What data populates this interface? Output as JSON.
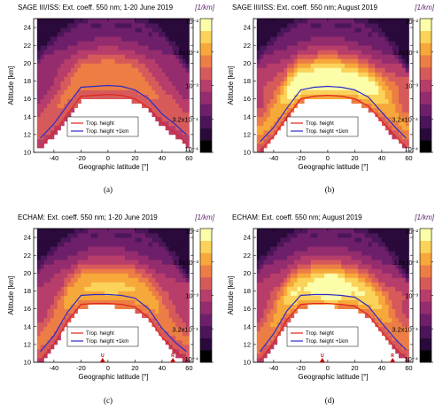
{
  "figure": {
    "unit_label": "[1/km]",
    "colorbar_ticks": [
      "10⁻²",
      "3.2x10⁻³",
      "10⁻³",
      "3.2x10⁻⁴",
      "10⁻⁴"
    ],
    "colors": {
      "colormap": [
        "#000000",
        "#2a0a3a",
        "#4a1659",
        "#6e1f6a",
        "#942c6e",
        "#b73d6a",
        "#d75a5b",
        "#ec7e45",
        "#f7a83a",
        "#fbd35a",
        "#fcfda8"
      ],
      "tropopause": "#e0241b",
      "tropopause_plus_1km": "#2d2bc8",
      "volcano_marker": "#c00000"
    }
  },
  "chart_data": [
    {
      "type": "heatmap",
      "panel": "a",
      "title": "SAGE III/ISS: Ext. coeff. 550 nm; 1-20 June 2019",
      "xlabel": "Geographic latitude [°]",
      "ylabel": "Altitude [km]",
      "xlim": [
        -55,
        63
      ],
      "ylim": [
        10,
        25
      ],
      "x_ticks": [
        "-40",
        "-20",
        "0",
        "20",
        "40",
        "60"
      ],
      "y_ticks": [
        "10",
        "12",
        "14",
        "16",
        "18",
        "20",
        "22",
        "24"
      ],
      "colorbar": {
        "scale": "log",
        "range": [
          0.0001,
          0.01
        ]
      },
      "legend": [
        "Trop. height",
        "Trop. height +1km"
      ],
      "caption": "(a)",
      "series": [
        {
          "name": "Trop. height",
          "x": [
            -50,
            -40,
            -30,
            -20,
            -10,
            0,
            10,
            20,
            30,
            40,
            50,
            58
          ],
          "y": [
            10.6,
            12.2,
            14.3,
            16.3,
            16.4,
            16.5,
            16.4,
            16.0,
            15.0,
            13.3,
            12.1,
            11.0
          ]
        },
        {
          "name": "Trop. height +1km",
          "x": [
            -50,
            -40,
            -30,
            -20,
            -10,
            0,
            10,
            20,
            30,
            40,
            50,
            58
          ],
          "y": [
            11.6,
            13.2,
            15.3,
            17.3,
            17.4,
            17.5,
            17.4,
            17.0,
            16.0,
            14.3,
            13.1,
            12.0
          ]
        }
      ]
    },
    {
      "type": "heatmap",
      "panel": "b",
      "title": "SAGE III/ISS: Ext. coeff. 550 nm; August 2019",
      "xlabel": "Geographic latitude [°]",
      "ylabel": "Altitude [km]",
      "xlim": [
        -55,
        63
      ],
      "ylim": [
        10,
        25
      ],
      "x_ticks": [
        "-40",
        "-20",
        "0",
        "20",
        "40",
        "60"
      ],
      "y_ticks": [
        "10",
        "12",
        "14",
        "16",
        "18",
        "20",
        "22",
        "24"
      ],
      "colorbar": {
        "scale": "log",
        "range": [
          0.0001,
          0.01
        ]
      },
      "legend": [
        "Trop. height",
        "Trop. height +1km"
      ],
      "caption": "(b)",
      "series": [
        {
          "name": "Trop. height",
          "x": [
            -50,
            -40,
            -30,
            -20,
            -10,
            0,
            10,
            20,
            30,
            40,
            50,
            58
          ],
          "y": [
            10.2,
            11.8,
            14.0,
            16.0,
            16.3,
            16.4,
            16.3,
            16.0,
            15.2,
            13.5,
            11.8,
            10.6
          ]
        },
        {
          "name": "Trop. height +1km",
          "x": [
            -50,
            -40,
            -30,
            -20,
            -10,
            0,
            10,
            20,
            30,
            40,
            50,
            58
          ],
          "y": [
            11.2,
            12.8,
            15.0,
            17.0,
            17.3,
            17.4,
            17.3,
            17.0,
            16.2,
            14.5,
            12.8,
            11.6
          ]
        }
      ]
    },
    {
      "type": "heatmap",
      "panel": "c",
      "title": "ECHAM: Ext. coeff. 550 nm; 1-20 June 2019",
      "xlabel": "Geographic latitude [°]",
      "ylabel": "Altitude [km]",
      "xlim": [
        -55,
        63
      ],
      "ylim": [
        10,
        25
      ],
      "x_ticks": [
        "-40",
        "-20",
        "0",
        "20",
        "40",
        "60"
      ],
      "y_ticks": [
        "10",
        "12",
        "14",
        "16",
        "18",
        "20",
        "22",
        "24"
      ],
      "colorbar": {
        "scale": "log",
        "range": [
          0.0001,
          0.01
        ]
      },
      "legend": [
        "Trop. height",
        "Trop. height +1km"
      ],
      "caption": "(c)",
      "annotations": [
        {
          "text": "U",
          "x": -4
        },
        {
          "text": "R",
          "x": 48
        }
      ],
      "series": [
        {
          "name": "Trop. height",
          "x": [
            -50,
            -40,
            -30,
            -20,
            -10,
            0,
            10,
            20,
            30,
            40,
            50,
            58
          ],
          "y": [
            10.2,
            12.0,
            14.6,
            16.5,
            16.6,
            16.6,
            16.5,
            16.2,
            15.0,
            12.8,
            11.2,
            10.2
          ]
        },
        {
          "name": "Trop. height +1km",
          "x": [
            -50,
            -40,
            -30,
            -20,
            -10,
            0,
            10,
            20,
            30,
            40,
            50,
            58
          ],
          "y": [
            11.2,
            13.0,
            15.6,
            17.5,
            17.6,
            17.6,
            17.5,
            17.2,
            16.0,
            13.8,
            12.2,
            11.2
          ]
        }
      ]
    },
    {
      "type": "heatmap",
      "panel": "d",
      "title": "ECHAM: Ext. coeff. 550 nm; August 2019",
      "xlabel": "Geographic latitude [°]",
      "ylabel": "Altitude [km]",
      "xlim": [
        -55,
        63
      ],
      "ylim": [
        10,
        25
      ],
      "x_ticks": [
        "-40",
        "-20",
        "0",
        "20",
        "40",
        "60"
      ],
      "y_ticks": [
        "10",
        "12",
        "14",
        "16",
        "18",
        "20",
        "22",
        "24"
      ],
      "colorbar": {
        "scale": "log",
        "range": [
          0.0001,
          0.01
        ]
      },
      "legend": [
        "Trop. height",
        "Trop. height +1km"
      ],
      "caption": "(d)",
      "annotations": [
        {
          "text": "U",
          "x": -4
        },
        {
          "text": "R",
          "x": 48
        }
      ],
      "series": [
        {
          "name": "Trop. height",
          "x": [
            -50,
            -40,
            -30,
            -20,
            -10,
            0,
            10,
            20,
            30,
            40,
            50,
            58
          ],
          "y": [
            10.2,
            12.2,
            14.8,
            16.5,
            16.6,
            16.6,
            16.5,
            16.3,
            15.3,
            13.4,
            11.6,
            10.4
          ]
        },
        {
          "name": "Trop. height +1km",
          "x": [
            -50,
            -40,
            -30,
            -20,
            -10,
            0,
            10,
            20,
            30,
            40,
            50,
            58
          ],
          "y": [
            11.2,
            13.2,
            15.8,
            17.5,
            17.6,
            17.6,
            17.5,
            17.3,
            16.3,
            14.4,
            12.6,
            11.4
          ]
        }
      ]
    }
  ]
}
